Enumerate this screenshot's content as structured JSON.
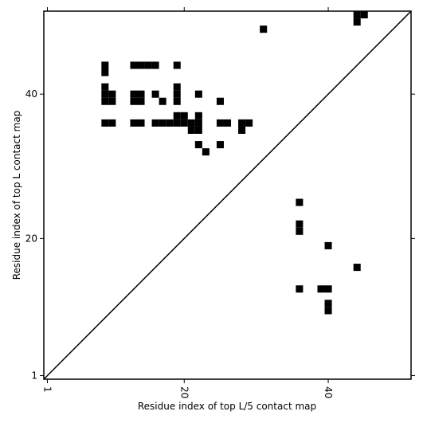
{
  "chart_data": {
    "type": "scatter",
    "xlabel": "Residue index of top L/5 contact map",
    "ylabel": "Residue index of top L contact map",
    "x": [
      31,
      44,
      44,
      45,
      9,
      9,
      13,
      14,
      15,
      16,
      19,
      9,
      9,
      9,
      10,
      10,
      13,
      13,
      14,
      14,
      16,
      17,
      19,
      19,
      19,
      22,
      25,
      9,
      10,
      13,
      14,
      16,
      17,
      18,
      19,
      20,
      19,
      20,
      21,
      22,
      21,
      22,
      22,
      25,
      26,
      28,
      29,
      28,
      22,
      23,
      25,
      36,
      36,
      36,
      40,
      44,
      36,
      39,
      40,
      40,
      40
    ],
    "y": [
      49,
      51,
      50,
      51,
      44,
      43,
      44,
      44,
      44,
      44,
      44,
      41,
      40,
      39,
      40,
      39,
      40,
      39,
      40,
      39,
      40,
      39,
      41,
      40,
      39,
      40,
      39,
      36,
      36,
      36,
      36,
      36,
      36,
      36,
      36,
      36,
      37,
      37,
      36,
      36,
      35,
      35,
      37,
      36,
      36,
      36,
      36,
      35,
      33,
      32,
      33,
      25,
      22,
      21,
      19,
      16,
      13,
      13,
      13,
      11,
      10
    ],
    "color": "#000000",
    "xlim": [
      0.5,
      51.5
    ],
    "ylim": [
      0.5,
      51.5
    ],
    "xticks": [
      1,
      20,
      40
    ],
    "yticks": [
      1,
      20,
      40
    ]
  }
}
